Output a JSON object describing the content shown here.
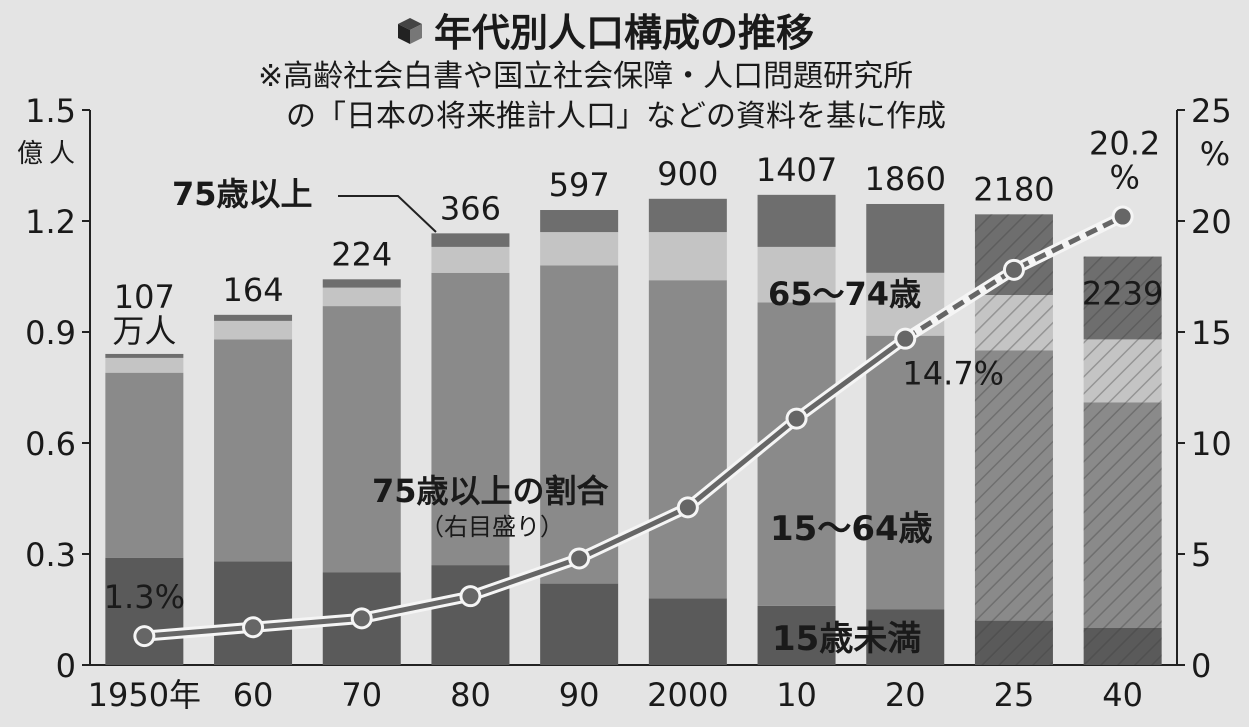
{
  "chart_data": {
    "type": "bar",
    "title": "年代別人口構成の推移",
    "subtitle_line1": "※高齢社会白書や国立社会保障・人口問題研究所",
    "subtitle_line2": "の「日本の将来推計人口」などの資料を基に作成",
    "left_axis": {
      "unit_line1": "億",
      "unit_line2": "人",
      "ylim": [
        0,
        1.5
      ],
      "ticks": [
        "0",
        "0.3",
        "0.6",
        "0.9",
        "1.2",
        "1.5"
      ]
    },
    "right_axis": {
      "unit": "%",
      "ylim": [
        0,
        25
      ],
      "ticks": [
        "0",
        "5",
        "10",
        "15",
        "20",
        "25"
      ]
    },
    "categories": [
      "1950年",
      "60",
      "70",
      "80",
      "90",
      "2000",
      "10",
      "20",
      "25",
      "40"
    ],
    "projected_from_index": 8,
    "stack_series": [
      {
        "name": "15歳未満",
        "color": "#5a5a5a",
        "values": [
          0.29,
          0.28,
          0.25,
          0.27,
          0.22,
          0.18,
          0.16,
          0.15,
          0.12,
          0.1
        ]
      },
      {
        "name": "15〜64歳",
        "color": "#8a8a8a",
        "values": [
          0.5,
          0.6,
          0.72,
          0.79,
          0.86,
          0.86,
          0.82,
          0.74,
          0.73,
          0.61
        ]
      },
      {
        "name": "65〜74歳",
        "color": "#c4c4c4",
        "values": [
          0.04,
          0.05,
          0.05,
          0.07,
          0.09,
          0.13,
          0.15,
          0.17,
          0.15,
          0.17
        ]
      },
      {
        "name": "75歳以上",
        "color": "#6e6e6e",
        "values": [
          0.0107,
          0.0164,
          0.0224,
          0.0366,
          0.0597,
          0.09,
          0.1407,
          0.186,
          0.218,
          0.2239
        ]
      }
    ],
    "top_labels": [
      "107",
      "164",
      "224",
      "366",
      "597",
      "900",
      "1407",
      "1860",
      "2180",
      "2239"
    ],
    "top_label_unit": "万人",
    "line_series": {
      "name": "75歳以上の割合",
      "note": "（右目盛り）",
      "values": [
        1.3,
        1.7,
        2.1,
        3.1,
        4.8,
        7.1,
        11.1,
        14.7,
        17.8,
        20.2
      ],
      "projected_from_index": 8
    },
    "line_value_labels": [
      {
        "index": 0,
        "text": "1.3%"
      },
      {
        "index": 7,
        "text": "14.7%"
      }
    ],
    "last_label_value": "20.2",
    "last_label_unit": "%",
    "annotations": {
      "over75": "75歳以上",
      "age65_74": "65〜74歳",
      "age15_64": "15〜64歳",
      "under15": "15歳未満"
    }
  }
}
